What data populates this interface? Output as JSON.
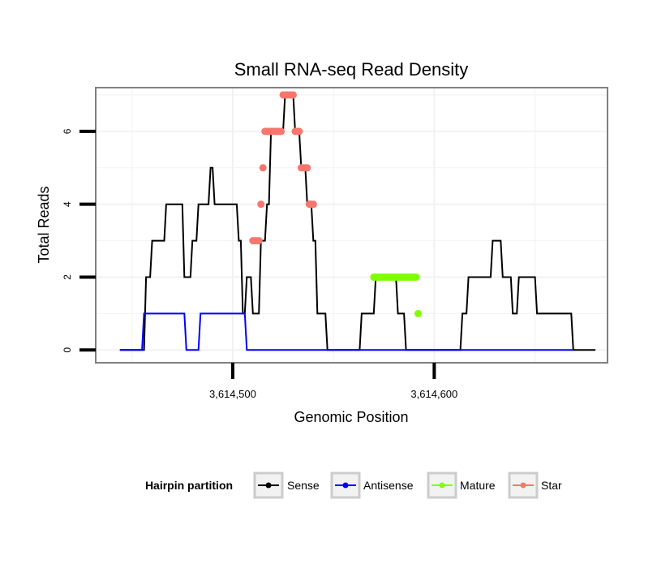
{
  "chart_data": {
    "type": "line",
    "title": "Small RNA-seq Read Density",
    "xlabel": "Genomic Position",
    "ylabel": "Total Reads",
    "xlim": [
      3614432,
      3614686
    ],
    "ylim": [
      -0.35,
      7.2
    ],
    "x_ticks": [
      3614500,
      3614600
    ],
    "x_tick_labels": [
      "3,614,500",
      "3,614,600"
    ],
    "y_ticks": [
      0,
      2,
      4,
      6
    ],
    "y_tick_labels": [
      "0",
      "2",
      "4",
      "6"
    ],
    "grid": true,
    "legend": {
      "title": "Hairpin partition",
      "position": "bottom",
      "entries": [
        "Sense",
        "Antisense",
        "Mature",
        "Star"
      ]
    },
    "series": [
      {
        "name": "Sense",
        "color": "#000000",
        "style": "step-line",
        "x": [
          3614444,
          3614456,
          3614457,
          3614459,
          3614460,
          3614466,
          3614467,
          3614475,
          3614476,
          3614479,
          3614480,
          3614482,
          3614483,
          3614488,
          3614489,
          3614490,
          3614491,
          3614502,
          3614503,
          3614504,
          3614505,
          3614506,
          3614507,
          3614509,
          3614510,
          3614513,
          3614514,
          3614516,
          3614517,
          3614518,
          3614519,
          3614525,
          3614526,
          3614530,
          3614531,
          3614533,
          3614534,
          3614536,
          3614537,
          3614539,
          3614540,
          3614541,
          3614542,
          3614546,
          3614547,
          3614551,
          3614552,
          3614563,
          3614564,
          3614570,
          3614571,
          3614581,
          3614582,
          3614585,
          3614586,
          3614613,
          3614614,
          3614616,
          3614617,
          3614628,
          3614629,
          3614633,
          3614634,
          3614638,
          3614639,
          3614641,
          3614642,
          3614650,
          3614651,
          3614668,
          3614669,
          3614680
        ],
        "values": [
          0,
          0,
          2,
          2,
          3,
          3,
          4,
          4,
          2,
          2,
          3,
          3,
          4,
          4,
          5,
          5,
          4,
          4,
          3,
          3,
          1,
          1,
          2,
          2,
          1,
          1,
          3,
          3,
          4,
          4,
          6,
          6,
          7,
          7,
          6,
          6,
          5,
          5,
          4,
          4,
          3,
          3,
          1,
          1,
          0,
          0,
          0,
          0,
          1,
          1,
          2,
          2,
          1,
          1,
          0,
          0,
          1,
          1,
          2,
          2,
          3,
          3,
          2,
          2,
          1,
          1,
          2,
          2,
          1,
          1,
          0,
          0
        ]
      },
      {
        "name": "Antisense",
        "color": "#0000ff",
        "style": "step-line",
        "x": [
          3614444,
          3614455,
          3614456,
          3614476,
          3614477,
          3614483,
          3614484,
          3614506,
          3614507,
          3614669
        ],
        "values": [
          0,
          0,
          1,
          1,
          0,
          0,
          1,
          1,
          0,
          0
        ]
      },
      {
        "name": "Mature",
        "color": "#7fff00",
        "style": "points",
        "x": [
          3614570,
          3614571,
          3614572,
          3614573,
          3614574,
          3614575,
          3614576,
          3614577,
          3614578,
          3614579,
          3614580,
          3614581,
          3614582,
          3614583,
          3614584,
          3614585,
          3614586,
          3614587,
          3614588,
          3614589,
          3614590,
          3614591,
          3614592
        ],
        "values": [
          2,
          2,
          2,
          2,
          2,
          2,
          2,
          2,
          2,
          2,
          2,
          2,
          2,
          2,
          2,
          2,
          2,
          2,
          2,
          2,
          2,
          2,
          1
        ]
      },
      {
        "name": "Star",
        "color": "#f8766d",
        "style": "points",
        "x": [
          3614510,
          3614511,
          3614512,
          3614513,
          3614514,
          3614515,
          3614516,
          3614517,
          3614518,
          3614519,
          3614520,
          3614521,
          3614522,
          3614523,
          3614524,
          3614525,
          3614526,
          3614527,
          3614528,
          3614529,
          3614530,
          3614531,
          3614532,
          3614533,
          3614534,
          3614535,
          3614536,
          3614537,
          3614538,
          3614539,
          3614540
        ],
        "values": [
          3,
          3,
          3,
          3,
          4,
          5,
          6,
          6,
          6,
          6,
          6,
          6,
          6,
          6,
          6,
          7,
          7,
          7,
          7,
          7,
          7,
          6,
          6,
          6,
          5,
          5,
          5,
          5,
          4,
          4,
          4
        ]
      }
    ]
  }
}
